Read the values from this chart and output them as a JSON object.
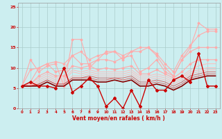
{
  "bg_color": "#cceef0",
  "grid_color": "#aacccc",
  "xlabel": "Vent moyen/en rafales ( km/h )",
  "xlim": [
    -0.5,
    23.5
  ],
  "ylim": [
    0,
    26
  ],
  "yticks": [
    0,
    5,
    10,
    15,
    20,
    25
  ],
  "xticks": [
    0,
    1,
    2,
    3,
    4,
    5,
    6,
    7,
    8,
    9,
    10,
    11,
    12,
    13,
    14,
    15,
    16,
    17,
    18,
    19,
    20,
    21,
    22,
    23
  ],
  "x": [
    0,
    1,
    2,
    3,
    4,
    5,
    6,
    7,
    8,
    9,
    10,
    11,
    12,
    13,
    14,
    15,
    16,
    17,
    18,
    19,
    20,
    21,
    22,
    23
  ],
  "series": [
    {
      "y": [
        5.5,
        12,
        9,
        10.5,
        11,
        5.5,
        17,
        17,
        10,
        12,
        14,
        14,
        12,
        14,
        15,
        15,
        13,
        10,
        8,
        12,
        15,
        21,
        19.5,
        19.5
      ],
      "color": "#ffaaaa",
      "lw": 0.8,
      "marker": "D",
      "ms": 1.5
    },
    {
      "y": [
        5.5,
        9.5,
        10,
        11,
        11.5,
        11,
        13,
        14,
        12,
        13,
        13.5,
        14,
        13,
        14,
        14,
        15,
        13.5,
        11,
        9,
        13,
        15.5,
        18,
        19,
        19
      ],
      "color": "#ffaaaa",
      "lw": 0.8,
      "marker": "D",
      "ms": 1.5
    },
    {
      "y": [
        5.5,
        6.5,
        10,
        11,
        9,
        9.5,
        13,
        11,
        11,
        12,
        12,
        11.5,
        12.5,
        13,
        9,
        10,
        12,
        9,
        8,
        12,
        14,
        15,
        15,
        15
      ],
      "color": "#ffaaaa",
      "lw": 0.8,
      "marker": "D",
      "ms": 1.5
    },
    {
      "y": [
        5.5,
        6,
        8,
        9,
        8,
        8,
        10.5,
        10,
        10.5,
        9.5,
        10,
        9.5,
        10,
        10.5,
        8.5,
        8.5,
        9.5,
        8.5,
        7.5,
        9,
        11,
        12,
        12,
        12
      ],
      "color": "#ffaaaa",
      "lw": 0.8,
      "marker": "D",
      "ms": 1.5
    },
    {
      "y": [
        5.5,
        6,
        7.5,
        8.5,
        7.5,
        7.5,
        9.5,
        9,
        9.5,
        9,
        9,
        9,
        9,
        9.5,
        8,
        8,
        8.5,
        8,
        7,
        8,
        9.5,
        10.5,
        11,
        11
      ],
      "color": "#ffbbbb",
      "lw": 0.7,
      "marker": null,
      "ms": 0
    },
    {
      "y": [
        5.5,
        5.5,
        7,
        8,
        7,
        7,
        9,
        8.5,
        9,
        8.5,
        8.5,
        8.5,
        8.5,
        9,
        7.5,
        7.5,
        8,
        7.5,
        6.5,
        7.5,
        9,
        9.5,
        10,
        10
      ],
      "color": "#ffbbbb",
      "lw": 0.7,
      "marker": null,
      "ms": 0
    },
    {
      "y": [
        5.5,
        5.5,
        6.5,
        7.5,
        6.5,
        6.5,
        8,
        8,
        8.5,
        8,
        8,
        8,
        8,
        8.5,
        7,
        7,
        7.5,
        7,
        6,
        7,
        8.5,
        9,
        9.5,
        9.5
      ],
      "color": "#ffbbbb",
      "lw": 0.7,
      "marker": null,
      "ms": 0
    },
    {
      "y": [
        5.5,
        5.5,
        6,
        7,
        6,
        6,
        7.5,
        7.5,
        8,
        7.5,
        7.5,
        7.5,
        7.5,
        8,
        6.5,
        6.5,
        7,
        6.5,
        5.5,
        6.5,
        8,
        8.5,
        9,
        9
      ],
      "color": "#dd6666",
      "lw": 0.7,
      "marker": null,
      "ms": 0
    },
    {
      "y": [
        5.5,
        5.5,
        6,
        7,
        6,
        6,
        7.5,
        7.5,
        7.5,
        7,
        7,
        7.5,
        7,
        7.5,
        6,
        6,
        6.5,
        6,
        5,
        6,
        7.5,
        8,
        8.5,
        8.5
      ],
      "color": "#dd6666",
      "lw": 0.7,
      "marker": null,
      "ms": 0
    },
    {
      "y": [
        5.5,
        5.5,
        5.5,
        6.5,
        5.5,
        5.5,
        7,
        7,
        7,
        6.5,
        6.5,
        7,
        6.5,
        7,
        5.5,
        5.5,
        6,
        5.5,
        4.5,
        5.5,
        7,
        7.5,
        8,
        8
      ],
      "color": "#880000",
      "lw": 1.2,
      "marker": null,
      "ms": 0
    },
    {
      "y": [
        5.5,
        6.5,
        5.5,
        5.5,
        5,
        10,
        4,
        5.5,
        7.5,
        5.5,
        0.5,
        2.5,
        0,
        4.5,
        0.5,
        7,
        4.5,
        4.5,
        7,
        8,
        6.5,
        13.5,
        5.5,
        5.5
      ],
      "color": "#cc0000",
      "lw": 1.0,
      "marker": "D",
      "ms": 2.0
    }
  ]
}
